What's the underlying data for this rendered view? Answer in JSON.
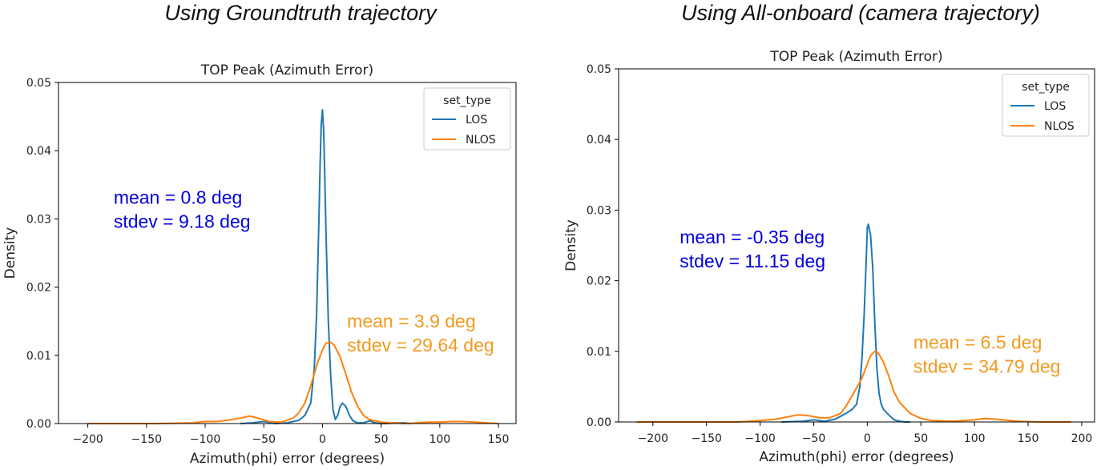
{
  "headings": [
    "Using Groundtruth trajectory",
    "Using All-onboard (camera trajectory)"
  ],
  "chart_data": [
    {
      "type": "line",
      "title": "TOP Peak (Azimuth Error)",
      "xlabel": "Azimuth(phi) error (degrees)",
      "ylabel": "Density",
      "xlim": [
        -225,
        165
      ],
      "ylim": [
        0,
        0.05
      ],
      "xticks": [
        -200,
        -150,
        -100,
        -50,
        0,
        50,
        100,
        150
      ],
      "yticks": [
        0.0,
        0.01,
        0.02,
        0.03,
        0.04,
        0.05
      ],
      "ytick_labels": [
        "0.00",
        "0.01",
        "0.02",
        "0.03",
        "0.04",
        "0.05"
      ],
      "grid": false,
      "legend": {
        "title": "set_type",
        "placement": "top-right",
        "entries": [
          "LOS",
          "NLOS"
        ]
      },
      "series": [
        {
          "name": "LOS",
          "color": "#1f77b4",
          "x": [
            -70,
            -60,
            -50,
            -40,
            -30,
            -20,
            -15,
            -10,
            -7,
            -5,
            -3,
            -2,
            -1,
            0,
            1,
            2,
            3,
            5,
            7,
            9,
            11,
            13,
            15,
            17,
            20,
            23,
            26,
            30,
            35,
            40,
            45,
            50,
            55,
            60,
            70,
            75
          ],
          "y": [
            0.0,
            0.0001,
            0.0003,
            0.0,
            0.0001,
            0.0005,
            0.0012,
            0.003,
            0.008,
            0.016,
            0.03,
            0.038,
            0.044,
            0.046,
            0.043,
            0.036,
            0.028,
            0.015,
            0.007,
            0.002,
            0.0006,
            0.0012,
            0.0025,
            0.003,
            0.0025,
            0.0012,
            0.0004,
            0.0001,
            0.0001,
            0.0004,
            0.0001,
            0.0,
            0.0,
            0.0001,
            0.0001,
            0.0
          ]
        },
        {
          "name": "NLOS",
          "color": "#ff7f0e",
          "x": [
            -200,
            -170,
            -140,
            -110,
            -100,
            -90,
            -80,
            -70,
            -62,
            -55,
            -45,
            -35,
            -25,
            -20,
            -15,
            -10,
            -5,
            0,
            3,
            7,
            10,
            15,
            20,
            25,
            30,
            35,
            40,
            50,
            60,
            70,
            80,
            90,
            100,
            110,
            120,
            130,
            140,
            150
          ],
          "y": [
            0.0,
            0.0,
            0.0,
            0.0001,
            0.0003,
            0.0003,
            0.0005,
            0.0008,
            0.0011,
            0.0008,
            0.0003,
            0.0002,
            0.0008,
            0.0016,
            0.003,
            0.0055,
            0.0085,
            0.0108,
            0.0118,
            0.0119,
            0.0115,
            0.0098,
            0.0072,
            0.0045,
            0.0025,
            0.0012,
            0.0006,
            0.0002,
            0.0001,
            0.0,
            0.0001,
            0.0002,
            0.0002,
            0.0003,
            0.0003,
            0.0002,
            0.0001,
            0.0
          ]
        }
      ],
      "annotations": [
        {
          "lines": [
            "mean = 0.8 deg",
            "stdev = 9.18 deg"
          ],
          "color": "#0000dd",
          "at": [
            -178,
            0.0322
          ]
        },
        {
          "lines": [
            "mean = 3.9 deg",
            "stdev = 29.64 deg"
          ],
          "color": "#f29a1e",
          "at": [
            21,
            0.0141
          ]
        }
      ]
    },
    {
      "type": "line",
      "title": "TOP Peak (Azimuth Error)",
      "xlabel": "Azimuth(phi) error (degrees)",
      "ylabel": "Density",
      "xlim": [
        -232,
        212
      ],
      "ylim": [
        0,
        0.05
      ],
      "xticks": [
        -200,
        -150,
        -100,
        -50,
        0,
        50,
        100,
        150,
        200
      ],
      "yticks": [
        0.0,
        0.01,
        0.02,
        0.03,
        0.04,
        0.05
      ],
      "ytick_labels": [
        "0.00",
        "0.01",
        "0.02",
        "0.03",
        "0.04",
        "0.05"
      ],
      "grid": false,
      "legend": {
        "title": "set_type",
        "placement": "top-right",
        "entries": [
          "LOS",
          "NLOS"
        ]
      },
      "series": [
        {
          "name": "LOS",
          "color": "#1f77b4",
          "x": [
            -80,
            -60,
            -50,
            -40,
            -30,
            -25,
            -20,
            -17,
            -14,
            -10,
            -7,
            -5,
            -3,
            -1,
            0,
            1,
            3,
            5,
            7,
            9,
            11,
            13,
            15,
            20,
            25,
            30,
            35,
            40
          ],
          "y": [
            0.0,
            0.0001,
            0.0003,
            0.0001,
            0.0004,
            0.0008,
            0.0012,
            0.0015,
            0.0018,
            0.0025,
            0.005,
            0.009,
            0.015,
            0.023,
            0.0275,
            0.028,
            0.0265,
            0.022,
            0.014,
            0.0075,
            0.004,
            0.0025,
            0.0018,
            0.001,
            0.0003,
            0.0001,
            0.0,
            0.0
          ]
        },
        {
          "name": "NLOS",
          "color": "#ff7f0e",
          "x": [
            -215,
            -180,
            -150,
            -120,
            -100,
            -85,
            -75,
            -65,
            -55,
            -45,
            -35,
            -25,
            -20,
            -15,
            -10,
            -5,
            0,
            3,
            7,
            10,
            15,
            20,
            25,
            30,
            40,
            50,
            60,
            80,
            100,
            110,
            120,
            140,
            160,
            190
          ],
          "y": [
            0.0,
            0.0,
            0.0,
            0.0,
            0.0002,
            0.0004,
            0.0007,
            0.001,
            0.0009,
            0.0006,
            0.0006,
            0.0012,
            0.0022,
            0.0035,
            0.0048,
            0.0062,
            0.0082,
            0.0094,
            0.01,
            0.0098,
            0.0085,
            0.0065,
            0.0042,
            0.0028,
            0.0012,
            0.0005,
            0.0002,
            0.0001,
            0.0003,
            0.0005,
            0.0004,
            0.0001,
            0.0,
            0.0
          ]
        }
      ],
      "annotations": [
        {
          "lines": [
            "mean = -0.35 deg",
            "stdev = 11.15 deg"
          ],
          "color": "#0000dd",
          "at": [
            -175,
            0.0253
          ]
        },
        {
          "lines": [
            "mean = 6.5 deg",
            "stdev = 34.79 deg"
          ],
          "color": "#f29a1e",
          "at": [
            43,
            0.0104
          ]
        }
      ]
    }
  ]
}
